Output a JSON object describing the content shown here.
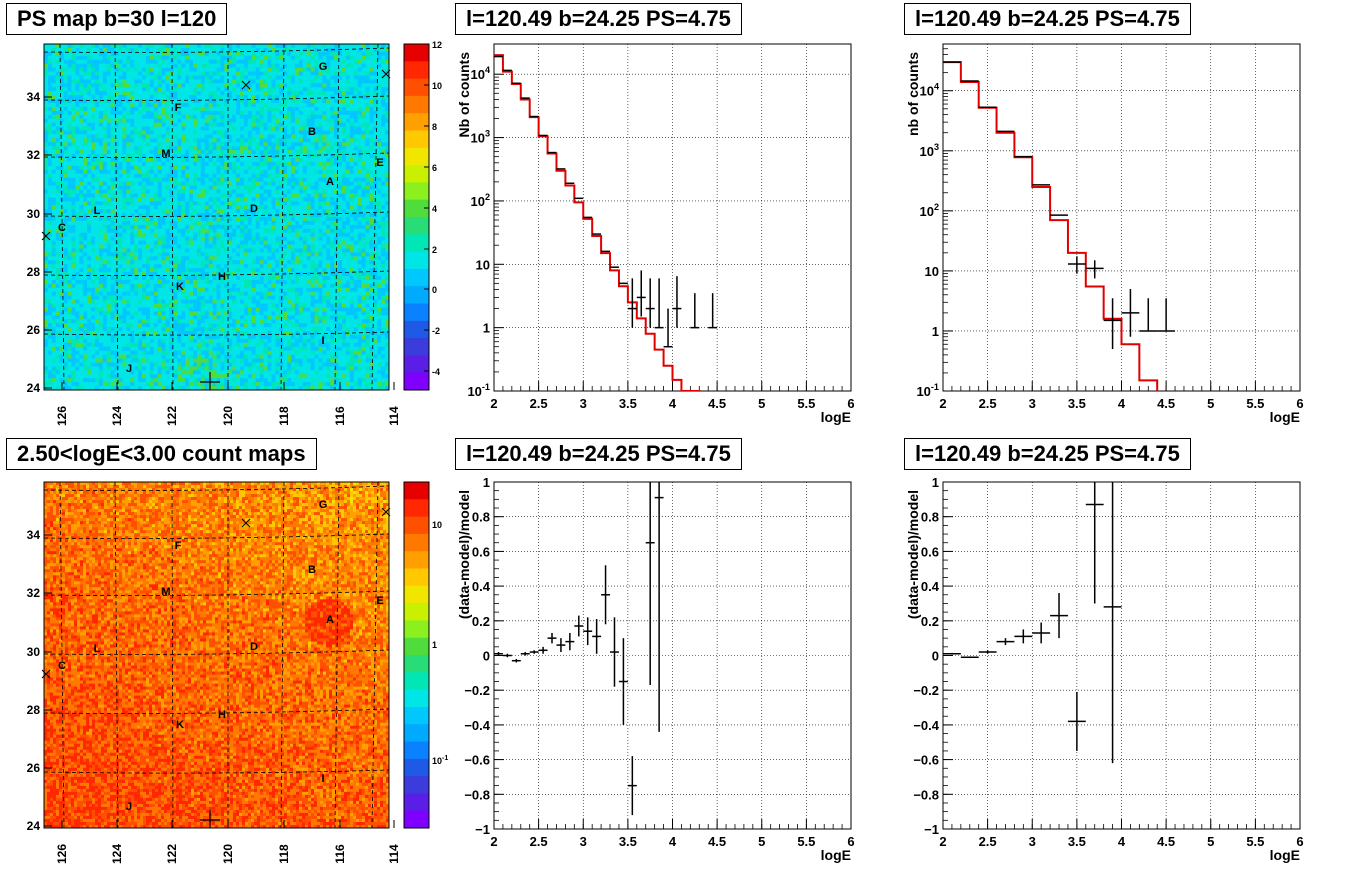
{
  "map_panels": [
    {
      "title": "PS map b=30 l=120",
      "colorbar_labels": [
        "12",
        "10",
        "8",
        "6",
        "4",
        "2",
        "0",
        "-2",
        "-4"
      ],
      "palette": "ps",
      "x_ticks": [
        "126",
        "124",
        "122",
        "120",
        "118",
        "116",
        "114"
      ],
      "y_ticks": [
        "34",
        "32",
        "30",
        "28",
        "26",
        "24"
      ],
      "source_labels": [
        "G",
        "F",
        "B",
        "M",
        "E",
        "A",
        "L",
        "D",
        "C",
        "H",
        "K",
        "I",
        "J"
      ]
    },
    {
      "title": "2.50<logE<3.00 count maps",
      "colorbar_labels": [
        "10",
        "1",
        "10",
        "-1"
      ],
      "palette": "counts",
      "x_ticks": [
        "126",
        "124",
        "122",
        "120",
        "118",
        "116",
        "114"
      ],
      "y_ticks": [
        "34",
        "32",
        "30",
        "28",
        "26",
        "24"
      ],
      "source_labels": [
        "G",
        "F",
        "B",
        "M",
        "E",
        "A",
        "L",
        "D",
        "C",
        "H",
        "K",
        "I",
        "J"
      ]
    }
  ],
  "chart_data": [
    {
      "panel": "top-middle",
      "type": "line",
      "title": "l=120.49 b=24.25 PS=4.75",
      "xlabel": "logE",
      "ylabel": "Nb of counts",
      "xlim": [
        2,
        6
      ],
      "ylim": [
        0.1,
        30000
      ],
      "yscale": "log",
      "x_ticks": [
        "2",
        "2.5",
        "3",
        "3.5",
        "4",
        "4.5",
        "5",
        "5.5",
        "6"
      ],
      "y_ticks": [
        "10^{-1}",
        "1",
        "10",
        "10^{2}",
        "10^{3}",
        "10^{4}"
      ],
      "grid": true,
      "model_color": "#e00000",
      "series": [
        {
          "name": "",
          "kind": "model-step",
          "bin_edges": [
            2.0,
            2.1,
            2.2,
            2.3,
            2.4,
            2.5,
            2.6,
            2.7,
            2.8,
            2.9,
            3.0,
            3.1,
            3.2,
            3.3,
            3.4,
            3.5,
            3.6,
            3.7,
            3.8,
            3.9,
            4.0,
            4.1,
            4.2,
            4.3,
            6.0
          ],
          "values": [
            20000,
            11000,
            7000,
            4000,
            2100,
            1050,
            560,
            300,
            175,
            95,
            52,
            28,
            15,
            8,
            4.5,
            2.5,
            1.4,
            0.8,
            0.45,
            0.25,
            0.15,
            0.1,
            0.1,
            0.06
          ]
        },
        {
          "name": "",
          "kind": "data-points",
          "x": [
            2.05,
            2.15,
            2.25,
            2.35,
            2.45,
            2.55,
            2.65,
            2.75,
            2.85,
            2.95,
            3.05,
            3.15,
            3.25,
            3.35,
            3.45,
            3.55,
            3.65,
            3.75,
            3.85,
            3.95,
            4.05,
            4.25,
            4.45
          ],
          "y": [
            19000,
            11500,
            7200,
            4200,
            2150,
            1080,
            580,
            320,
            190,
            110,
            55,
            30,
            16,
            9,
            5,
            2,
            3,
            2,
            1,
            0.5,
            2,
            1,
            1
          ],
          "y_err_low": [
            0.1,
            0.1,
            0.1,
            0.1,
            0.1,
            0.1,
            0.1,
            0.1,
            0.1,
            0.1,
            0.1,
            0.1,
            0.1,
            0.1,
            0.1,
            1.0,
            1.5,
            1.0,
            0.0,
            0.0,
            1.0,
            0.0,
            0.0
          ],
          "y_err_high": [
            0.1,
            0.1,
            0.1,
            0.1,
            0.1,
            0.1,
            0.1,
            0.1,
            0.1,
            0.1,
            0.1,
            0.1,
            0.1,
            0.1,
            0.1,
            4.0,
            5.0,
            4.0,
            5.0,
            1.5,
            4.5,
            2.5,
            2.5
          ]
        }
      ]
    },
    {
      "panel": "top-right",
      "type": "line",
      "title": "l=120.49 b=24.25 PS=4.75",
      "xlabel": "logE",
      "ylabel": "nb of counts",
      "xlim": [
        2,
        6
      ],
      "ylim": [
        0.1,
        60000
      ],
      "yscale": "log",
      "x_ticks": [
        "2",
        "2.5",
        "3",
        "3.5",
        "4",
        "4.5",
        "5",
        "5.5",
        "6"
      ],
      "y_ticks": [
        "10^{-1}",
        "1",
        "10",
        "10^{2}",
        "10^{3}",
        "10^{4}"
      ],
      "grid": true,
      "model_color": "#e00000",
      "series": [
        {
          "name": "",
          "kind": "model-step",
          "bin_edges": [
            2.0,
            2.2,
            2.4,
            2.6,
            2.8,
            3.0,
            3.2,
            3.4,
            3.6,
            3.8,
            4.0,
            4.2,
            4.4,
            6.0
          ],
          "values": [
            30000,
            14000,
            5200,
            2000,
            780,
            250,
            70,
            20,
            5.5,
            1.6,
            0.6,
            0.15,
            0.06
          ],
          "y_cut": 0.1
        },
        {
          "name": "",
          "kind": "data-points",
          "x": [
            2.1,
            2.3,
            2.5,
            2.7,
            2.9,
            3.1,
            3.3,
            3.5,
            3.7,
            3.9,
            4.1,
            4.3,
            4.5
          ],
          "y": [
            30000,
            14500,
            5300,
            2100,
            800,
            270,
            85,
            13,
            11,
            1.5,
            2,
            1,
            1
          ],
          "x_err": [
            0.1,
            0.1,
            0.1,
            0.1,
            0.1,
            0.1,
            0.1,
            0.1,
            0.1,
            0.1,
            0.1,
            0.1,
            0.1
          ],
          "y_err_low": [
            0.1,
            0.1,
            0.1,
            0.1,
            0.1,
            0.1,
            0.1,
            4.0,
            3.5,
            1.0,
            1.2,
            0.0,
            0.0
          ],
          "y_err_high": [
            0.1,
            0.1,
            0.1,
            0.1,
            0.1,
            0.1,
            0.1,
            4.5,
            4.0,
            2.0,
            3.0,
            2.5,
            2.5
          ]
        }
      ]
    },
    {
      "panel": "bottom-middle",
      "type": "scatter",
      "title": "l=120.49 b=24.25 PS=4.75",
      "xlabel": "logE",
      "ylabel": "(data-model)/model",
      "xlim": [
        2,
        6
      ],
      "ylim": [
        -1,
        1
      ],
      "x_ticks": [
        "2",
        "2.5",
        "3",
        "3.5",
        "4",
        "4.5",
        "5",
        "5.5",
        "6"
      ],
      "y_ticks": [
        "1",
        "0.8",
        "0.6",
        "0.4",
        "0.2",
        "0",
        "-0.2",
        "-0.4",
        "-0.6",
        "-0.8",
        "-1"
      ],
      "grid": true,
      "series": [
        {
          "name": "",
          "x": [
            2.05,
            2.15,
            2.25,
            2.35,
            2.45,
            2.55,
            2.65,
            2.75,
            2.85,
            2.95,
            3.05,
            3.15,
            3.25,
            3.35,
            3.45,
            3.55,
            3.75,
            3.85
          ],
          "y": [
            0.01,
            0.0,
            -0.03,
            0.01,
            0.02,
            0.03,
            0.1,
            0.06,
            0.08,
            0.17,
            0.14,
            0.11,
            0.35,
            0.02,
            -0.15,
            -0.75,
            0.65,
            0.91
          ],
          "y_err": [
            0.01,
            0.01,
            0.01,
            0.01,
            0.01,
            0.02,
            0.03,
            0.04,
            0.05,
            0.06,
            0.08,
            0.1,
            0.17,
            0.2,
            0.25,
            0.17,
            0.82,
            1.35
          ],
          "x_err": 0.05
        }
      ]
    },
    {
      "panel": "bottom-right",
      "type": "scatter",
      "title": "l=120.49 b=24.25 PS=4.75",
      "xlabel": "logE",
      "ylabel": "(data-model)/model",
      "xlim": [
        2,
        6
      ],
      "ylim": [
        -1,
        1
      ],
      "x_ticks": [
        "2",
        "2.5",
        "3",
        "3.5",
        "4",
        "4.5",
        "5",
        "5.5",
        "6"
      ],
      "y_ticks": [
        "1",
        "0.8",
        "0.6",
        "0.4",
        "0.2",
        "0",
        "-0.2",
        "-0.4",
        "-0.6",
        "-0.8",
        "-1"
      ],
      "grid": true,
      "series": [
        {
          "name": "",
          "x": [
            2.1,
            2.3,
            2.5,
            2.7,
            2.9,
            3.1,
            3.3,
            3.5,
            3.7,
            3.9
          ],
          "y": [
            0.01,
            -0.01,
            0.02,
            0.08,
            0.11,
            0.13,
            0.23,
            -0.38,
            0.87,
            0.28
          ],
          "y_err": [
            0.005,
            0.005,
            0.01,
            0.02,
            0.04,
            0.06,
            0.13,
            0.17,
            0.57,
            0.9
          ],
          "x_err": 0.1
        }
      ]
    }
  ]
}
